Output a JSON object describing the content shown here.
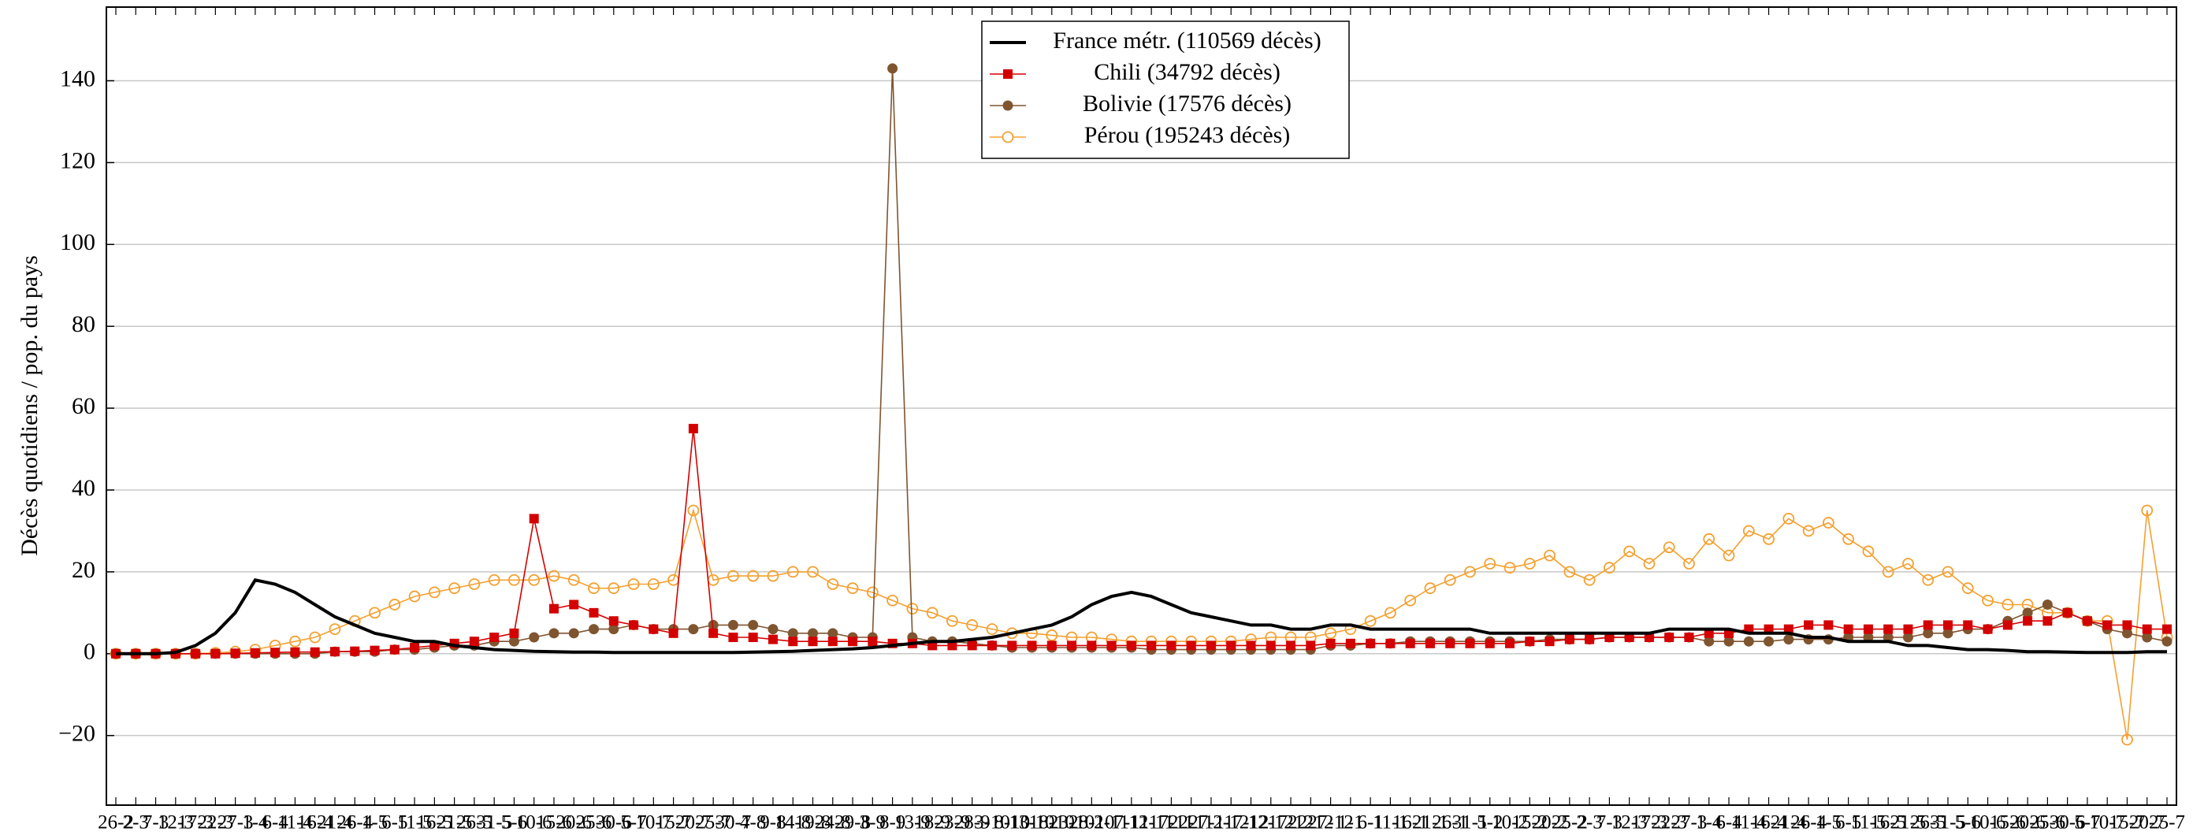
{
  "chart_data": {
    "type": "line",
    "y_label": "Décès quotidiens / pop. du pays",
    "categories": [
      "26-2",
      "2-3",
      "7-3",
      "12-3",
      "17-3",
      "22-3",
      "27-3",
      "1-4",
      "6-4",
      "11-4",
      "16-4",
      "21-4",
      "26-4",
      "1-5",
      "6-5",
      "11-5",
      "16-5",
      "21-5",
      "26-5",
      "31-5",
      "5-6",
      "10-6",
      "15-6",
      "20-6",
      "25-6",
      "30-6",
      "5-7",
      "10-7",
      "15-7",
      "20-7",
      "25-7",
      "30-7",
      "4-8",
      "9-8",
      "14-8",
      "19-8",
      "24-8",
      "29-8",
      "3-9",
      "8-9",
      "13-9",
      "18-9",
      "23-9",
      "28-9",
      "3-10",
      "8-10",
      "13-10",
      "18-10",
      "23-10",
      "28-10",
      "2-11",
      "7-11",
      "12-11",
      "17-11",
      "22-11",
      "27-11",
      "2-12",
      "7-12",
      "12-12",
      "17-12",
      "22-12",
      "27-12",
      "1-1",
      "6-1",
      "11-1",
      "16-1",
      "21-1",
      "26-1",
      "31-1",
      "5-2",
      "10-2",
      "15-2",
      "20-2",
      "25-2",
      "2-3",
      "7-3",
      "12-3",
      "17-3",
      "22-3",
      "27-3",
      "1-4",
      "6-4",
      "11-4",
      "16-4",
      "21-4",
      "26-4",
      "1-5",
      "6-5",
      "11-5",
      "16-5",
      "21-5",
      "26-5",
      "31-5",
      "5-6",
      "10-6",
      "15-6",
      "20-6",
      "25-6",
      "30-6",
      "5-7",
      "10-7",
      "15-7",
      "20-7",
      "25-7"
    ],
    "series": [
      {
        "name": "France métr. (110569 décès)",
        "color": "#000000",
        "marker": "none",
        "values": [
          0,
          0,
          0,
          0.3,
          2,
          5,
          10,
          18,
          17,
          15,
          12,
          9,
          7,
          5,
          4,
          3,
          3,
          2,
          1.5,
          1,
          0.8,
          0.6,
          0.5,
          0.4,
          0.4,
          0.3,
          0.3,
          0.3,
          0.3,
          0.3,
          0.3,
          0.3,
          0.4,
          0.5,
          0.6,
          0.8,
          1,
          1.2,
          1.5,
          2,
          2.5,
          3,
          3,
          3.5,
          4,
          5,
          6,
          7,
          9,
          12,
          14,
          15,
          14,
          12,
          10,
          9,
          8,
          7,
          7,
          6,
          6,
          7,
          7,
          6,
          6,
          6,
          6,
          6,
          6,
          5,
          5,
          5,
          5,
          5,
          5,
          5,
          5,
          5,
          6,
          6,
          6,
          6,
          5,
          5,
          5,
          4,
          4,
          3,
          3,
          3,
          2,
          2,
          1.5,
          1,
          1,
          0.8,
          0.5,
          0.5,
          0.4,
          0.3,
          0.3,
          0.3,
          0.5,
          0.5
        ]
      },
      {
        "name": "Chili (34792 décès)",
        "color": "#d40000",
        "marker": "square",
        "values": [
          0,
          0,
          0,
          0,
          0,
          0,
          0.1,
          0.2,
          0.3,
          0.4,
          0.4,
          0.5,
          0.6,
          0.8,
          1,
          1.5,
          2,
          2.5,
          3,
          4,
          5,
          33,
          11,
          12,
          10,
          8,
          7,
          6,
          5,
          55,
          5,
          4,
          4,
          3.5,
          3,
          3,
          3,
          3,
          3,
          2.5,
          2.5,
          2,
          2,
          2,
          2,
          2,
          2,
          2,
          2,
          2,
          2,
          2,
          2,
          2,
          2,
          2,
          2,
          2,
          2,
          2,
          2,
          2.5,
          2.5,
          2.5,
          2.5,
          2.5,
          2.5,
          2.5,
          2.5,
          2.5,
          2.5,
          3,
          3,
          3.5,
          3.5,
          4,
          4,
          4,
          4,
          4,
          5,
          5,
          6,
          6,
          6,
          7,
          7,
          6,
          6,
          6,
          6,
          7,
          7,
          7,
          6,
          7,
          8,
          8,
          10,
          8,
          7,
          7,
          6,
          6
        ]
      },
      {
        "name": "Bolivie (17576 décès)",
        "color": "#7f5530",
        "marker": "circle",
        "values": [
          0,
          0,
          0,
          0,
          0,
          0,
          0,
          0,
          0,
          0,
          0,
          0.5,
          0.5,
          0.5,
          1,
          1,
          1.5,
          2,
          2,
          3,
          3,
          4,
          5,
          5,
          6,
          6,
          7,
          6,
          6,
          6,
          7,
          7,
          7,
          6,
          5,
          5,
          5,
          4,
          4,
          143,
          4,
          3,
          3,
          2.5,
          2,
          1.5,
          1.5,
          1.5,
          1.5,
          1.5,
          1.5,
          1.5,
          1,
          1,
          1,
          1,
          1,
          1,
          1,
          1,
          1,
          2,
          2,
          2.5,
          2.5,
          3,
          3,
          3,
          3,
          3,
          3,
          3,
          3.5,
          3.5,
          3.5,
          4,
          4,
          4,
          4,
          4,
          3,
          3,
          3,
          3,
          3.5,
          3.5,
          3.5,
          4,
          4,
          4,
          4,
          5,
          5,
          6,
          6,
          8,
          10,
          12,
          10,
          8,
          6,
          5,
          4,
          3
        ]
      },
      {
        "name": "Pérou (195243 décès)",
        "color": "#f5a030",
        "marker": "open-circle",
        "values": [
          0,
          0,
          0,
          0,
          0,
          0.2,
          0.5,
          1,
          2,
          3,
          4,
          6,
          8,
          10,
          12,
          14,
          15,
          16,
          17,
          18,
          18,
          18,
          19,
          18,
          16,
          16,
          17,
          17,
          18,
          35,
          18,
          19,
          19,
          19,
          20,
          20,
          17,
          16,
          15,
          13,
          11,
          10,
          8,
          7,
          6,
          5,
          5,
          4.5,
          4,
          4,
          3.5,
          3,
          3,
          3,
          3,
          3,
          3,
          3.5,
          4,
          4,
          4,
          5,
          6,
          8,
          10,
          13,
          16,
          18,
          20,
          22,
          21,
          22,
          24,
          20,
          18,
          21,
          25,
          22,
          26,
          22,
          28,
          24,
          30,
          28,
          33,
          30,
          32,
          28,
          25,
          20,
          22,
          18,
          20,
          16,
          13,
          12,
          12,
          10,
          10,
          8,
          8,
          -21,
          35,
          4
        ]
      }
    ],
    "ylim": [
      -37,
      158
    ],
    "yticks": [
      {
        "value": -20,
        "label": "−20"
      },
      0,
      20,
      40,
      60,
      80,
      100,
      120,
      140
    ],
    "grid": true,
    "legend": "top-center"
  }
}
